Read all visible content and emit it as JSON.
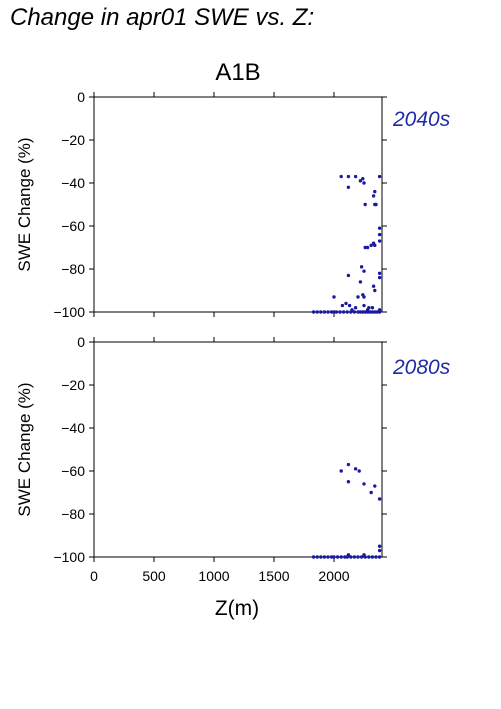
{
  "figure": {
    "title": "Change in apr01 SWE vs. Z:",
    "scenario": "A1B",
    "xlabel": "Z(m)",
    "ylabel": "SWE Change (%)",
    "point_color": "#1a1a9e",
    "label_color": "#1f2ca8"
  },
  "chart_data": [
    {
      "type": "scatter",
      "panel_label": "2040s",
      "xlabel": "",
      "ylabel": "SWE Change (%)",
      "xlim": [
        0,
        2400
      ],
      "ylim": [
        -100,
        0
      ],
      "x_ticks": [
        0,
        500,
        1000,
        1500,
        2000
      ],
      "y_ticks": [
        0,
        -20,
        -40,
        -60,
        -80,
        -100
      ],
      "x_tick_labels_visible": false,
      "grid": false,
      "series": [
        {
          "color": "#1a1a9e",
          "x": [
            2060,
            2120,
            2180,
            2220,
            2250,
            2260,
            2340,
            2340,
            2380,
            2120,
            2240,
            2330,
            2350,
            2380,
            2380,
            2260,
            2280,
            2310,
            2330,
            2340,
            2380,
            2380,
            2380,
            2230,
            2250,
            2330,
            2340,
            2120,
            2200,
            2220,
            2240,
            2250,
            2000,
            2070,
            2100,
            2130,
            2180,
            2250,
            2280,
            2320,
            2380,
            1830,
            1860,
            1890,
            1920,
            1950,
            1980,
            2000,
            2020,
            2050,
            2080,
            2110,
            2140,
            2170,
            2200,
            2220,
            2240,
            2260,
            2280,
            2300,
            2320,
            2340,
            2360,
            2380,
            2150,
            2290
          ],
          "y": [
            -37,
            -42,
            -37,
            -39,
            -40,
            -50,
            -44,
            -50,
            -37,
            -37,
            -38,
            -46,
            -50,
            -61,
            -64,
            -70,
            -70,
            -69,
            -68,
            -69,
            -67,
            -82,
            -84,
            -79,
            -81,
            -88,
            -90,
            -83,
            -93,
            -86,
            -92,
            -93,
            -93,
            -97,
            -96,
            -97,
            -98,
            -97,
            -99,
            -98,
            -99,
            -100,
            -100,
            -100,
            -100,
            -100,
            -100,
            -100,
            -100,
            -100,
            -100,
            -100,
            -100,
            -100,
            -100,
            -100,
            -100,
            -100,
            -100,
            -100,
            -100,
            -100,
            -100,
            -100,
            -99,
            -98
          ]
        }
      ]
    },
    {
      "type": "scatter",
      "panel_label": "2080s",
      "xlabel": "Z(m)",
      "ylabel": "SWE Change (%)",
      "xlim": [
        0,
        2400
      ],
      "ylim": [
        -100,
        0
      ],
      "x_ticks": [
        0,
        500,
        1000,
        1500,
        2000
      ],
      "y_ticks": [
        0,
        -20,
        -40,
        -60,
        -80,
        -100
      ],
      "x_tick_labels_visible": true,
      "grid": false,
      "series": [
        {
          "color": "#1a1a9e",
          "x": [
            2060,
            2120,
            2180,
            2210,
            2250,
            2340,
            2380,
            2310,
            2120,
            2380,
            2380,
            1830,
            1860,
            1890,
            1920,
            1950,
            1980,
            2000,
            2030,
            2060,
            2090,
            2110,
            2140,
            2170,
            2200,
            2230,
            2260,
            2290,
            2320,
            2350,
            2380,
            2120,
            2250
          ],
          "y": [
            -60,
            -57,
            -59,
            -60,
            -66,
            -67,
            -73,
            -70,
            -65,
            -95,
            -97,
            -100,
            -100,
            -100,
            -100,
            -100,
            -100,
            -100,
            -100,
            -100,
            -100,
            -100,
            -100,
            -100,
            -100,
            -100,
            -100,
            -100,
            -100,
            -100,
            -100,
            -99,
            -99
          ]
        }
      ]
    }
  ]
}
